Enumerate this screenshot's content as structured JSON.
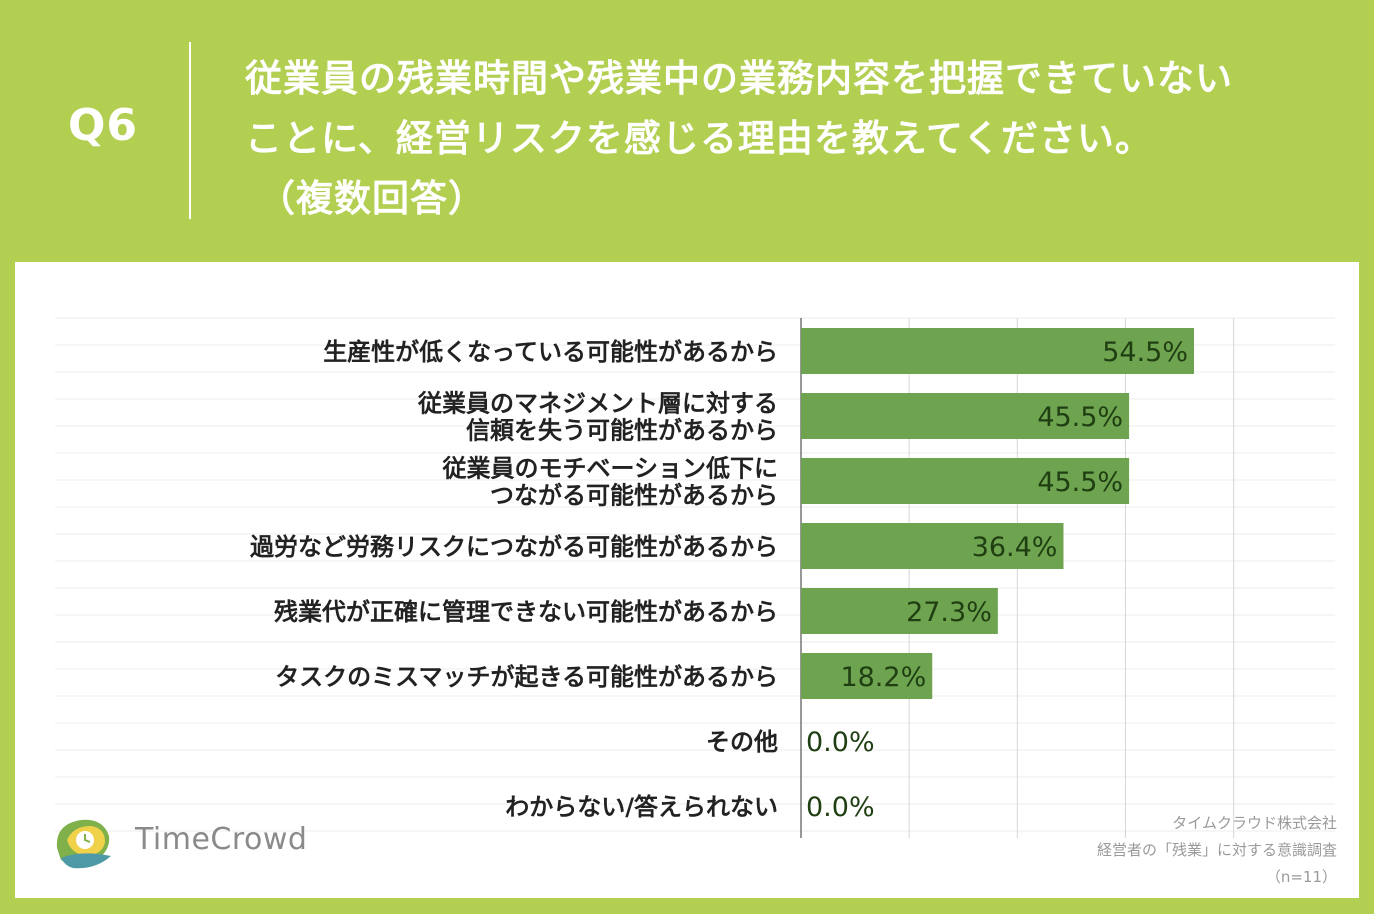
{
  "header": {
    "question_number": "Q6",
    "question_lines": [
      "従業員の残業時間や残業中の業務内容を把握できていない",
      "ことに、経営リスクを感じる理由を教えてください。",
      "（複数回答）"
    ]
  },
  "chart_data": {
    "type": "bar",
    "orientation": "horizontal",
    "categories": [
      [
        "生産性が低くなっている可能性があるから"
      ],
      [
        "従業員のマネジメント層に対する",
        "信頼を失う可能性があるから"
      ],
      [
        "従業員のモチベーション低下に",
        "つながる可能性があるから"
      ],
      [
        "過労など労務リスクにつながる可能性があるから"
      ],
      [
        "残業代が正確に管理できない可能性があるから"
      ],
      [
        "タスクのミスマッチが起きる可能性があるから"
      ],
      [
        "その他"
      ],
      [
        "わからない/答えられない"
      ]
    ],
    "values": [
      54.5,
      45.5,
      45.5,
      36.4,
      27.3,
      18.2,
      0.0,
      0.0
    ],
    "value_labels": [
      "54.5%",
      "45.5%",
      "45.5%",
      "36.4%",
      "27.3%",
      "18.2%",
      "0.0%",
      "0.0%"
    ],
    "xlim": [
      0,
      60
    ],
    "grid": true,
    "bar_color": "#6ea350"
  },
  "branding": {
    "logo_text": "TimeCrowd",
    "source_lines": [
      "タイムクラウド株式会社",
      "経営者の「残業」に対する意識調査",
      "（n=11）"
    ]
  },
  "colors": {
    "background": "#b2cf52",
    "bar": "#6ea350",
    "value_text": "#1f3f12"
  }
}
